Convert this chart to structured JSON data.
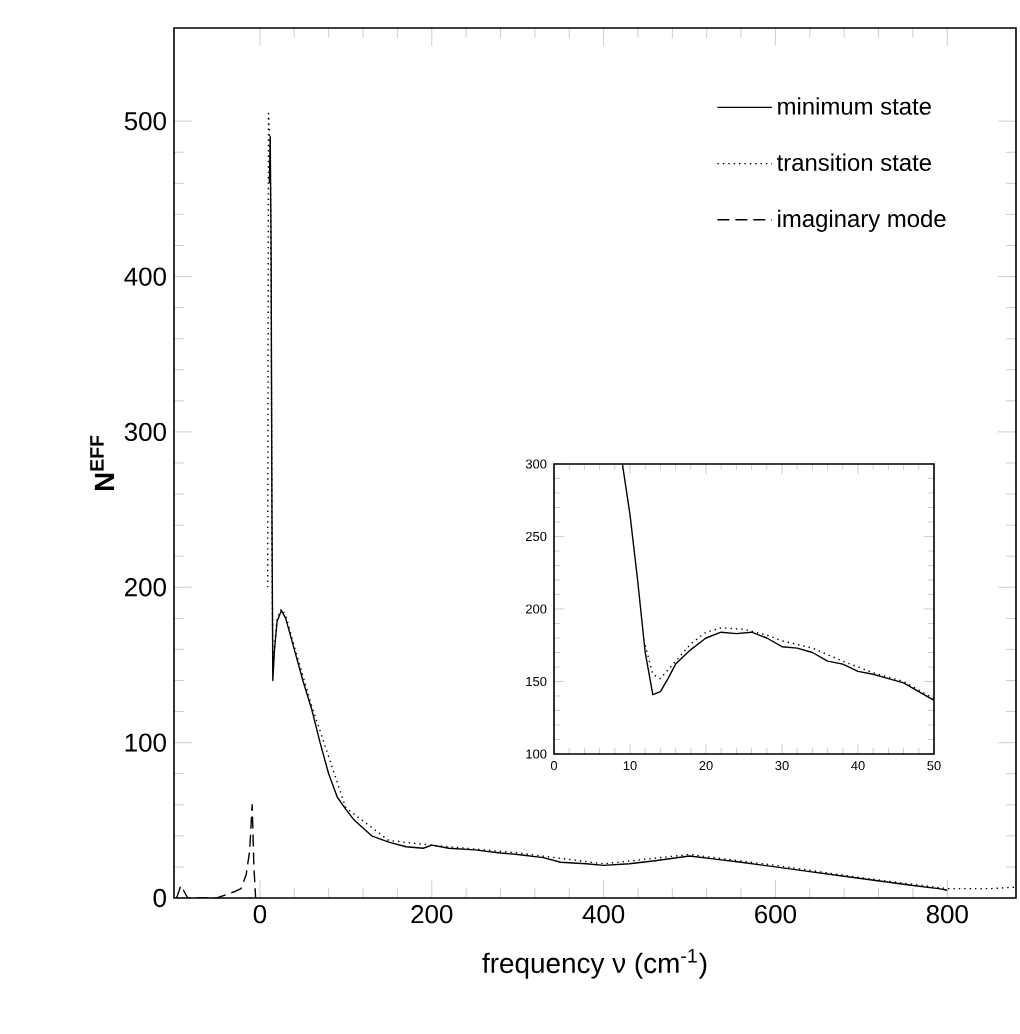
{
  "chart_data": [
    {
      "type": "line",
      "xlabel": "frequency ν (cm$^{-1}$)",
      "ylabel": "N$^{EFF}$",
      "xlim": [
        -100,
        880
      ],
      "ylim": [
        0,
        560
      ],
      "xticks": [
        0,
        200,
        400,
        600,
        800
      ],
      "yticks": [
        0,
        100,
        200,
        300,
        400,
        500
      ],
      "legend": "top right",
      "series": [
        {
          "name": "minimum state",
          "color": "#000000",
          "line_style": "solid",
          "x": [
            11,
            12,
            13,
            14,
            15,
            17,
            20,
            25,
            30,
            40,
            50,
            60,
            70,
            80,
            90,
            100,
            110,
            120,
            130,
            150,
            170,
            190,
            200,
            220,
            250,
            280,
            300,
            330,
            350,
            380,
            400,
            430,
            460,
            500,
            530,
            560,
            600,
            640,
            680,
            720,
            760,
            790,
            800
          ],
          "values": [
            460,
            490,
            420,
            250,
            140,
            160,
            178,
            185,
            180,
            160,
            140,
            122,
            100,
            80,
            65,
            57,
            50,
            45,
            40,
            36,
            33,
            32,
            34,
            32,
            31,
            29,
            28,
            26,
            23,
            22,
            21,
            22,
            24,
            27,
            25,
            23,
            20,
            17,
            14,
            11,
            8,
            6,
            5
          ]
        },
        {
          "name": "transition state",
          "color": "#000000",
          "line_style": "dotted",
          "x": [
            9,
            10,
            12,
            13,
            14,
            15,
            17,
            20,
            25,
            30,
            40,
            60,
            100,
            150,
            200,
            300,
            400,
            500,
            600,
            700,
            800,
            850,
            880
          ],
          "values": [
            200,
            505,
            480,
            400,
            230,
            155,
            162,
            180,
            186,
            182,
            162,
            124,
            58,
            37,
            34,
            29,
            22,
            28,
            21,
            13,
            6,
            6,
            7
          ]
        },
        {
          "name": "imaginary mode",
          "color": "#000000",
          "line_style": "dashed",
          "x": [
            -97,
            -92,
            -88,
            -84,
            -50,
            -40,
            -30,
            -22,
            -16,
            -12,
            -9,
            -7,
            -5
          ],
          "values": [
            0,
            8,
            4,
            0,
            0,
            2,
            4,
            6,
            15,
            30,
            60,
            20,
            0
          ]
        }
      ]
    },
    {
      "type": "line",
      "xlim": [
        0,
        50
      ],
      "ylim": [
        100,
        300
      ],
      "xticks": [
        0,
        10,
        20,
        30,
        40,
        50
      ],
      "yticks": [
        100,
        150,
        200,
        250,
        300
      ],
      "series": [
        {
          "color": "#000000",
          "line_style": "solid",
          "x": [
            9,
            10,
            11,
            12,
            13,
            14,
            15,
            16,
            18,
            20,
            22,
            24,
            26,
            28,
            30,
            32,
            34,
            36,
            38,
            40,
            42,
            44,
            46,
            48,
            50
          ],
          "values": [
            300,
            265,
            220,
            170,
            141,
            143,
            152,
            162,
            172,
            180,
            184,
            183,
            184,
            180,
            174,
            173,
            170,
            164,
            162,
            157,
            155,
            152,
            149,
            143,
            137
          ]
        },
        {
          "color": "#000000",
          "line_style": "dotted",
          "x": [
            12,
            13,
            14,
            16,
            18,
            20,
            22,
            25,
            28,
            30,
            34,
            38,
            42,
            46,
            50
          ],
          "values": [
            175,
            155,
            152,
            164,
            176,
            184,
            187,
            186,
            182,
            178,
            173,
            164,
            156,
            150,
            138
          ]
        }
      ]
    }
  ]
}
